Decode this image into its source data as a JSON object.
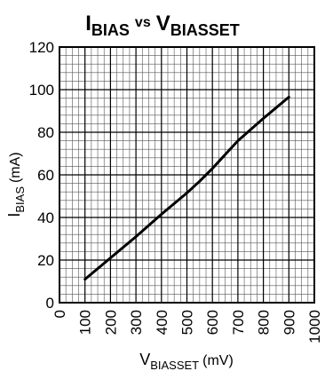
{
  "chart_data": {
    "type": "line",
    "title": {
      "left_main": "I",
      "left_sub": "BIAS",
      "middle": "vs",
      "right_main": "V",
      "right_sub": "BIASSET"
    },
    "xlabel": {
      "main": "V",
      "sub": "BIASSET",
      "unit": "(mV)"
    },
    "ylabel": {
      "main": "I",
      "sub": "BIAS",
      "unit": "(mA)"
    },
    "xlim": [
      0,
      1000
    ],
    "ylim": [
      0,
      120
    ],
    "x_ticks": [
      "0",
      "100",
      "200",
      "300",
      "400",
      "500",
      "600",
      "700",
      "800",
      "900",
      "1000"
    ],
    "y_ticks": [
      "0",
      "20",
      "40",
      "60",
      "80",
      "100",
      "120"
    ],
    "grid": true,
    "minor_grid_per_major_x": 4,
    "minor_grid_per_major_y": 5,
    "series": [
      {
        "color": "#000000",
        "x": [
          100,
          200,
          300,
          400,
          500,
          550,
          600,
          700,
          800,
          900
        ],
        "y": [
          11,
          21,
          31,
          41.5,
          51.5,
          57,
          63,
          76,
          86.5,
          96.5
        ]
      }
    ]
  }
}
